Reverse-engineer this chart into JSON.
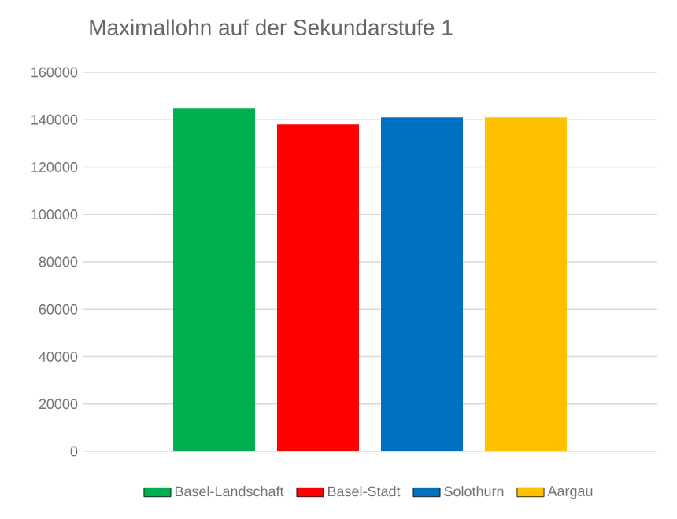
{
  "chart_data": {
    "type": "bar",
    "title": "Maximallohn auf der Sekundarstufe 1",
    "categories": [
      null
    ],
    "series": [
      {
        "name": "Basel-Landschaft",
        "color": "#00b050",
        "values": [
          145000
        ]
      },
      {
        "name": "Basel-Stadt",
        "color": "#ff0000",
        "values": [
          138000
        ]
      },
      {
        "name": "Solothurn",
        "color": "#0070c0",
        "values": [
          141000
        ]
      },
      {
        "name": "Aargau",
        "color": "#ffc000",
        "values": [
          141000
        ]
      }
    ],
    "ylim": [
      0,
      160000
    ],
    "yticks": [
      0,
      20000,
      40000,
      60000,
      80000,
      100000,
      120000,
      140000,
      160000
    ],
    "grid": "y",
    "legend": "bottom"
  }
}
